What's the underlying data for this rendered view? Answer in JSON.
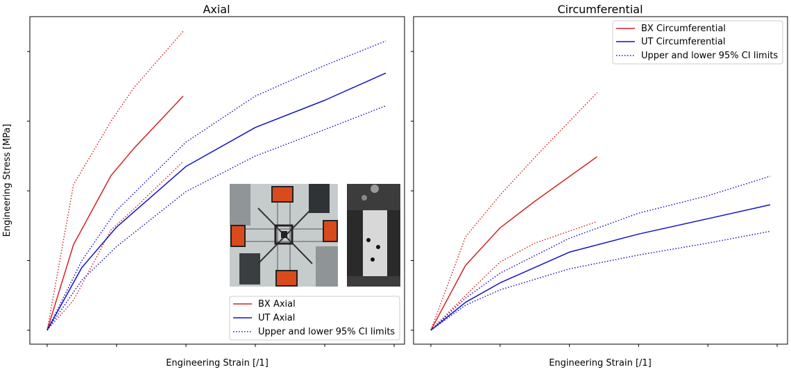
{
  "shared_ylabel": "Engineering Stress [MPa]",
  "colors": {
    "bx": "#d62020",
    "ut": "#1010c8"
  },
  "chart_data": [
    {
      "type": "line",
      "title": "Axial",
      "xlabel": "Engineering Strain [/1]",
      "ylabel": "Engineering Stress [MPa]",
      "xlim": [
        -0.25,
        5.15
      ],
      "ylim": [
        -0.2,
        4.5
      ],
      "xticks": [
        0,
        1,
        2,
        3,
        4,
        5
      ],
      "yticks": [
        0,
        1,
        2,
        3,
        4
      ],
      "tick_labels_visible": false,
      "legend": {
        "location": "lower-right",
        "entries": [
          "BX Axial",
          "UT Axial",
          "Upper and lower 95% CI limits"
        ]
      },
      "series": [
        {
          "name": "BX Axial",
          "color": "bx",
          "style": "solid",
          "x": [
            0,
            0.38,
            0.92,
            1.25,
            1.96
          ],
          "y": [
            0,
            1.23,
            2.22,
            2.61,
            3.36
          ]
        },
        {
          "name": "BX upper CI",
          "color": "bx",
          "style": "dotted",
          "x": [
            0,
            0.38,
            0.92,
            1.25,
            1.96
          ],
          "y": [
            0,
            2.09,
            3.0,
            3.48,
            4.29
          ]
        },
        {
          "name": "BX lower CI",
          "color": "bx",
          "style": "dotted",
          "x": [
            0,
            0.38,
            0.92,
            1.25,
            1.96
          ],
          "y": [
            0,
            0.43,
            1.44,
            1.74,
            2.42
          ]
        },
        {
          "name": "UT Axial",
          "color": "ut",
          "style": "solid",
          "x": [
            0,
            0.5,
            1.0,
            2.0,
            3.0,
            4.0,
            4.88
          ],
          "y": [
            0,
            0.9,
            1.48,
            2.35,
            2.91,
            3.3,
            3.69
          ]
        },
        {
          "name": "UT upper CI",
          "color": "ut",
          "style": "dotted",
          "x": [
            0,
            0.5,
            1.0,
            2.0,
            3.0,
            4.0,
            4.88
          ],
          "y": [
            0,
            1.0,
            1.72,
            2.7,
            3.36,
            3.8,
            4.15
          ]
        },
        {
          "name": "UT lower CI",
          "color": "ut",
          "style": "dotted",
          "x": [
            0,
            0.5,
            1.0,
            2.0,
            3.0,
            4.0,
            4.88
          ],
          "y": [
            0,
            0.72,
            1.2,
            1.99,
            2.5,
            2.88,
            3.22
          ]
        }
      ]
    },
    {
      "type": "line",
      "title": "Circumferential",
      "xlabel": "Engineering Strain [/1]",
      "ylabel": "",
      "xlim": [
        -0.25,
        5.15
      ],
      "ylim": [
        -0.2,
        4.5
      ],
      "xticks": [
        0,
        1,
        2,
        3,
        4,
        5
      ],
      "yticks": [
        0,
        1,
        2,
        3,
        4
      ],
      "tick_labels_visible": false,
      "legend": {
        "location": "top-right",
        "entries": [
          "BX Circumferential",
          "UT Circumferential",
          "Upper and lower 95% CI limits"
        ]
      },
      "series": [
        {
          "name": "BX Circumferential",
          "color": "bx",
          "style": "solid",
          "x": [
            0,
            0.5,
            1.0,
            1.5,
            2.4
          ],
          "y": [
            0,
            0.93,
            1.47,
            1.85,
            2.49
          ]
        },
        {
          "name": "BX upper CI",
          "color": "bx",
          "style": "dotted",
          "x": [
            0,
            0.5,
            1.0,
            1.5,
            2.4
          ],
          "y": [
            0,
            1.34,
            1.94,
            2.48,
            3.41
          ]
        },
        {
          "name": "BX lower CI",
          "color": "bx",
          "style": "dotted",
          "x": [
            0,
            0.5,
            1.0,
            1.5,
            2.4
          ],
          "y": [
            0,
            0.5,
            0.98,
            1.25,
            1.56
          ]
        },
        {
          "name": "UT Circumferential",
          "color": "ut",
          "style": "solid",
          "x": [
            0,
            0.5,
            1.0,
            2.0,
            3.0,
            4.0,
            4.9
          ],
          "y": [
            0,
            0.4,
            0.68,
            1.12,
            1.38,
            1.6,
            1.8
          ]
        },
        {
          "name": "UT upper CI",
          "color": "ut",
          "style": "dotted",
          "x": [
            0,
            0.5,
            1.0,
            2.0,
            3.0,
            4.0,
            4.9
          ],
          "y": [
            0,
            0.46,
            0.82,
            1.32,
            1.68,
            1.93,
            2.21
          ]
        },
        {
          "name": "UT lower CI",
          "color": "ut",
          "style": "dotted",
          "x": [
            0,
            0.5,
            1.0,
            2.0,
            3.0,
            4.0,
            4.9
          ],
          "y": [
            0,
            0.36,
            0.58,
            0.88,
            1.08,
            1.25,
            1.42
          ]
        }
      ]
    }
  ]
}
